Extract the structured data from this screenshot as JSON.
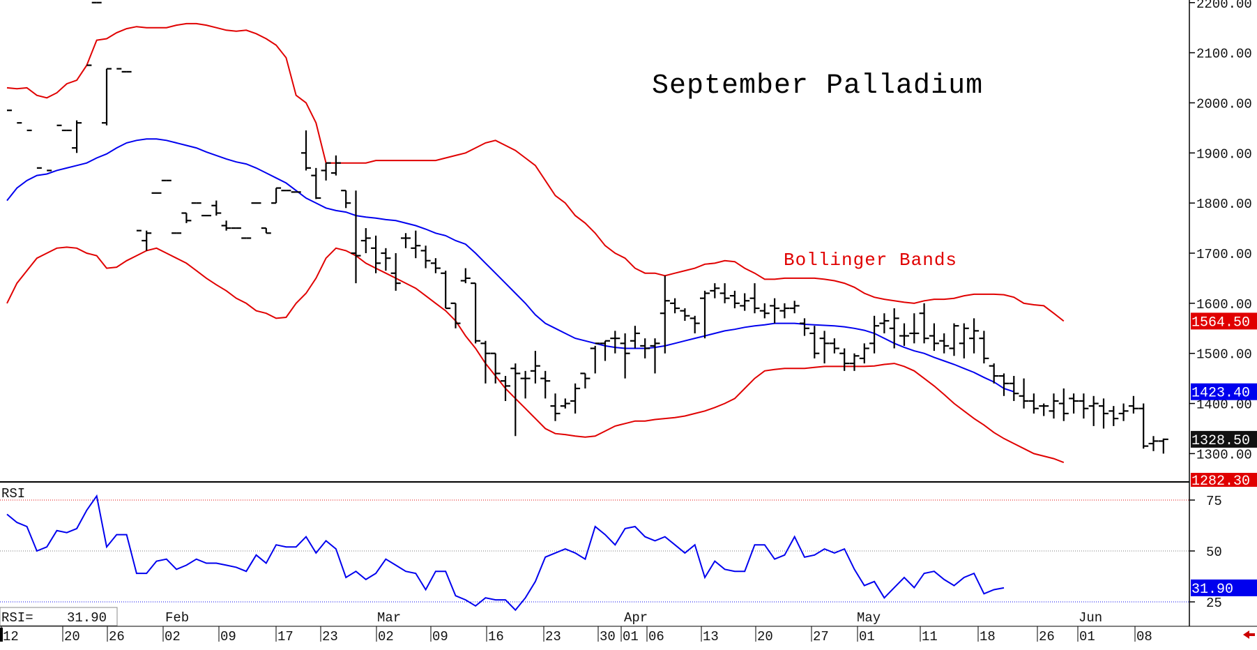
{
  "chart_data": [
    {
      "type": "ohlc",
      "title": "September Palladium",
      "annotation": "Bollinger Bands",
      "ylim": [
        1280,
        2230
      ],
      "y_ticks": [
        "2200.00",
        "2100.00",
        "2000.00",
        "1900.00",
        "1800.00",
        "1700.00",
        "1600.00",
        "1500.00",
        "1400.00",
        "1300.00"
      ],
      "y_tick_values": [
        2200,
        2100,
        2000,
        1900,
        1800,
        1700,
        1600,
        1500,
        1400,
        1300
      ],
      "last_values": {
        "upper_band": "1564.50",
        "middle_band": "1423.40",
        "close": "1328.50",
        "lower_band": "1282.30"
      },
      "colors": {
        "upper_band": "#e00000",
        "middle_band": "#0000ee",
        "lower_band": "#e00000",
        "price": "#000000",
        "close_badge": "#111111"
      },
      "bars": [
        [
          null,
          1985,
          1985,
          1985
        ],
        [
          null,
          1960,
          1960,
          1960
        ],
        [
          null,
          1945,
          1945,
          1945
        ],
        [
          null,
          1870,
          1870,
          1870
        ],
        [
          null,
          1865,
          1865,
          1865
        ],
        [
          null,
          1955,
          1955,
          1955
        ],
        [
          1945,
          1945,
          1945,
          1945
        ],
        [
          1910,
          1965,
          1900,
          1960
        ],
        [
          null,
          2075,
          2075,
          2075
        ],
        [
          2200,
          2200,
          2200,
          2200
        ],
        [
          1960,
          2068,
          1955,
          2068
        ],
        [
          null,
          2068,
          2068,
          2068
        ],
        [
          2062,
          2062,
          2062,
          2062
        ],
        [
          null,
          1745,
          1745,
          1745
        ],
        [
          1725,
          1745,
          1705,
          1740
        ],
        [
          1820,
          1820,
          1820,
          1820
        ],
        [
          1845,
          1845,
          1845,
          1845
        ],
        [
          1740,
          1740,
          1740,
          1740
        ],
        [
          1780,
          1780,
          1760,
          1765
        ],
        [
          1800,
          1800,
          1800,
          1800
        ],
        [
          1775,
          1775,
          1775,
          1775
        ],
        [
          1795,
          1805,
          1775,
          1780
        ],
        [
          1755,
          1765,
          1745,
          1750
        ],
        [
          1750,
          1750,
          1750,
          1750
        ],
        [
          1730,
          1730,
          1730,
          1730
        ],
        [
          1800,
          1800,
          1800,
          1800
        ],
        [
          1750,
          1750,
          1740,
          1740
        ],
        [
          1800,
          1830,
          1800,
          1830
        ],
        [
          1825,
          1825,
          1825,
          1825
        ],
        [
          1822,
          1822,
          1822,
          1822
        ],
        [
          1900,
          1945,
          1865,
          1870
        ],
        [
          1855,
          1870,
          1808,
          1810
        ],
        [
          1865,
          1880,
          1845,
          1880
        ],
        [
          1860,
          1895,
          1855,
          1880
        ],
        [
          1825,
          1825,
          1790,
          1800
        ],
        [
          1700,
          1825,
          1640,
          1695
        ],
        [
          1725,
          1750,
          1700,
          1730
        ],
        [
          1710,
          1735,
          1660,
          1680
        ],
        [
          1700,
          1710,
          1665,
          1690
        ],
        [
          1660,
          1700,
          1625,
          1640
        ],
        [
          1730,
          1740,
          1710,
          1730
        ],
        [
          1710,
          1745,
          1690,
          1715
        ],
        [
          1705,
          1715,
          1670,
          1685
        ],
        [
          1680,
          1690,
          1660,
          1670
        ],
        [
          1660,
          1665,
          1590,
          1590
        ],
        [
          1600,
          1600,
          1550,
          1560
        ],
        [
          1645,
          1670,
          1640,
          1650
        ],
        [
          1640,
          1640,
          1520,
          1525
        ],
        [
          1520,
          1525,
          1440,
          1500
        ],
        [
          1500,
          1500,
          1440,
          1460
        ],
        [
          1445,
          1455,
          1405,
          1435
        ],
        [
          1470,
          1480,
          1335,
          1460
        ],
        [
          1450,
          1465,
          1410,
          1450
        ],
        [
          1465,
          1505,
          1440,
          1475
        ],
        [
          1450,
          1465,
          1410,
          1445
        ],
        [
          1395,
          1420,
          1365,
          1380
        ],
        [
          1395,
          1410,
          1390,
          1400
        ],
        [
          1405,
          1440,
          1380,
          1430
        ],
        [
          1460,
          1460,
          1430,
          1450
        ],
        [
          1510,
          1515,
          1460,
          1520
        ],
        [
          1520,
          1525,
          1485,
          1525
        ],
        [
          1530,
          1545,
          1500,
          1530
        ],
        [
          1520,
          1540,
          1450,
          1500
        ],
        [
          1525,
          1555,
          1510,
          1540
        ],
        [
          1515,
          1530,
          1490,
          1510
        ],
        [
          1515,
          1530,
          1460,
          1520
        ],
        [
          1580,
          1655,
          1500,
          1605
        ],
        [
          1600,
          1610,
          1580,
          1590
        ],
        [
          1585,
          1590,
          1565,
          1575
        ],
        [
          1570,
          1575,
          1540,
          1560
        ],
        [
          1610,
          1625,
          1530,
          1620
        ],
        [
          1625,
          1640,
          1610,
          1630
        ],
        [
          1620,
          1640,
          1600,
          1610
        ],
        [
          1615,
          1625,
          1590,
          1600
        ],
        [
          1595,
          1620,
          1585,
          1605
        ],
        [
          1610,
          1640,
          1580,
          1590
        ],
        [
          1585,
          1600,
          1570,
          1580
        ],
        [
          1595,
          1610,
          1560,
          1590
        ],
        [
          1585,
          1600,
          1570,
          1590
        ],
        [
          1590,
          1605,
          1580,
          1595
        ],
        [
          1560,
          1570,
          1535,
          1550
        ],
        [
          1540,
          1555,
          1490,
          1500
        ],
        [
          1530,
          1545,
          1480,
          1520
        ],
        [
          1520,
          1530,
          1500,
          1510
        ],
        [
          1500,
          1510,
          1465,
          1480
        ],
        [
          1480,
          1500,
          1465,
          1495
        ],
        [
          1490,
          1520,
          1480,
          1510
        ],
        [
          1520,
          1575,
          1500,
          1555
        ],
        [
          1560,
          1580,
          1540,
          1565
        ],
        [
          1550,
          1590,
          1510,
          1570
        ],
        [
          1535,
          1560,
          1515,
          1535
        ],
        [
          1540,
          1580,
          1520,
          1540
        ],
        [
          1580,
          1600,
          1520,
          1530
        ],
        [
          1535,
          1560,
          1505,
          1520
        ],
        [
          1525,
          1540,
          1500,
          1515
        ],
        [
          1510,
          1560,
          1495,
          1555
        ],
        [
          1520,
          1560,
          1490,
          1550
        ],
        [
          1530,
          1570,
          1500,
          1545
        ],
        [
          1530,
          1545,
          1480,
          1490
        ],
        [
          1475,
          1480,
          1440,
          1455
        ],
        [
          1455,
          1460,
          1415,
          1440
        ],
        [
          1440,
          1455,
          1405,
          1420
        ],
        [
          1415,
          1450,
          1390,
          1405
        ],
        [
          1405,
          1420,
          1380,
          1390
        ],
        [
          1395,
          1400,
          1375,
          1395
        ],
        [
          1385,
          1420,
          1370,
          1405
        ],
        [
          1400,
          1430,
          1365,
          1380
        ],
        [
          1410,
          1420,
          1380,
          1405
        ],
        [
          1405,
          1420,
          1370,
          1390
        ],
        [
          1395,
          1415,
          1355,
          1400
        ],
        [
          1395,
          1410,
          1350,
          1380
        ],
        [
          1385,
          1395,
          1355,
          1370
        ],
        [
          1380,
          1400,
          1365,
          1385
        ],
        [
          1395,
          1415,
          1380,
          1390
        ],
        [
          1390,
          1400,
          1310,
          1315
        ],
        [
          1320,
          1335,
          1305,
          1325
        ],
        [
          1325,
          1330,
          1300,
          1328.5
        ]
      ],
      "upper_band": [
        2030,
        2028,
        2030,
        2015,
        2010,
        2020,
        2038,
        2045,
        2075,
        2125,
        2128,
        2140,
        2148,
        2152,
        2150,
        2150,
        2150,
        2155,
        2158,
        2158,
        2155,
        2150,
        2145,
        2143,
        2145,
        2138,
        2128,
        2115,
        2090,
        2015,
        2000,
        1960,
        1880,
        1880,
        1880,
        1880,
        1880,
        1885,
        1885,
        1885,
        1885,
        1885,
        1885,
        1885,
        1890,
        1895,
        1900,
        1910,
        1920,
        1925,
        1915,
        1905,
        1890,
        1875,
        1845,
        1815,
        1800,
        1775,
        1760,
        1740,
        1715,
        1700,
        1690,
        1670,
        1660,
        1660,
        1655,
        1660,
        1665,
        1670,
        1678,
        1680,
        1685,
        1683,
        1670,
        1660,
        1648,
        1648,
        1650,
        1650,
        1650,
        1650,
        1648,
        1645,
        1640,
        1632,
        1620,
        1612,
        1608,
        1605,
        1602,
        1600,
        1605,
        1608,
        1608,
        1610,
        1615,
        1618,
        1618,
        1618,
        1617,
        1612,
        1600,
        1597,
        1595,
        1580,
        1564.5
      ],
      "middle_band": [
        1805,
        1830,
        1845,
        1855,
        1858,
        1865,
        1870,
        1875,
        1880,
        1890,
        1898,
        1910,
        1920,
        1925,
        1928,
        1928,
        1925,
        1920,
        1915,
        1910,
        1902,
        1895,
        1888,
        1882,
        1878,
        1870,
        1860,
        1850,
        1840,
        1825,
        1810,
        1800,
        1790,
        1785,
        1782,
        1775,
        1772,
        1770,
        1767,
        1765,
        1760,
        1755,
        1748,
        1740,
        1735,
        1725,
        1718,
        1700,
        1680,
        1660,
        1640,
        1620,
        1600,
        1577,
        1560,
        1550,
        1540,
        1530,
        1525,
        1520,
        1515,
        1512,
        1510,
        1510,
        1510,
        1512,
        1515,
        1520,
        1525,
        1530,
        1535,
        1540,
        1545,
        1548,
        1552,
        1555,
        1557,
        1560,
        1560,
        1560,
        1558,
        1557,
        1556,
        1555,
        1553,
        1550,
        1546,
        1540,
        1530,
        1520,
        1512,
        1505,
        1500,
        1492,
        1485,
        1478,
        1470,
        1462,
        1452,
        1443,
        1430,
        1423.4
      ],
      "lower_band": [
        1600,
        1640,
        1665,
        1690,
        1700,
        1710,
        1712,
        1710,
        1700,
        1695,
        1670,
        1672,
        1685,
        1695,
        1705,
        1710,
        1700,
        1690,
        1680,
        1665,
        1650,
        1637,
        1625,
        1610,
        1600,
        1585,
        1580,
        1570,
        1572,
        1600,
        1620,
        1650,
        1690,
        1710,
        1705,
        1695,
        1680,
        1670,
        1660,
        1650,
        1640,
        1630,
        1615,
        1600,
        1585,
        1565,
        1535,
        1510,
        1480,
        1455,
        1430,
        1410,
        1390,
        1370,
        1350,
        1340,
        1338,
        1335,
        1333,
        1335,
        1345,
        1355,
        1360,
        1365,
        1365,
        1368,
        1370,
        1372,
        1375,
        1380,
        1385,
        1392,
        1400,
        1410,
        1430,
        1450,
        1465,
        1468,
        1470,
        1470,
        1470,
        1472,
        1474,
        1474,
        1474,
        1474,
        1474,
        1475,
        1478,
        1480,
        1474,
        1465,
        1450,
        1435,
        1418,
        1400,
        1385,
        1370,
        1357,
        1342,
        1330,
        1320,
        1310,
        1300,
        1295,
        1290,
        1282.3
      ]
    },
    {
      "type": "line",
      "ylabel": "RSI",
      "ylim": [
        15,
        90
      ],
      "y_ticks": [
        "75",
        "50",
        "25"
      ],
      "y_tick_values": [
        75,
        50,
        25
      ],
      "reference_lines": [
        75,
        50,
        25
      ],
      "readout_label": "RSI=",
      "readout_value": "31.90",
      "last_value": "31.90",
      "values": [
        68,
        64,
        62,
        50,
        52,
        60,
        59,
        61,
        70,
        77,
        52,
        58,
        58,
        39,
        39,
        45,
        46,
        41,
        43,
        46,
        44,
        44,
        43,
        42,
        40,
        48,
        44,
        53,
        52,
        52,
        57,
        49,
        55,
        51,
        37,
        40,
        36,
        39,
        46,
        43,
        40,
        39,
        31,
        40,
        40,
        28,
        26,
        23,
        27,
        26,
        26,
        21,
        27,
        35,
        47,
        49,
        51,
        49,
        46,
        62,
        58,
        53,
        61,
        62,
        57,
        55,
        57,
        53,
        49,
        53,
        37,
        45,
        41,
        40,
        40,
        53,
        53,
        46,
        48,
        57,
        47,
        48,
        51,
        49,
        51,
        41,
        33,
        35,
        27,
        32,
        37,
        32,
        39,
        40,
        36,
        33,
        37,
        39,
        29,
        31,
        31.9
      ]
    }
  ],
  "x_axis": {
    "day_labels": [
      "12",
      "20",
      "26",
      "02",
      "09",
      "17",
      "23",
      "02",
      "09",
      "16",
      "23",
      "30",
      "01",
      "06",
      "13",
      "20",
      "27",
      "01",
      "11",
      "18",
      "26",
      "01",
      "08"
    ],
    "month_labels": [
      "Feb",
      "Mar",
      "Apr",
      "May",
      "Jun"
    ]
  }
}
